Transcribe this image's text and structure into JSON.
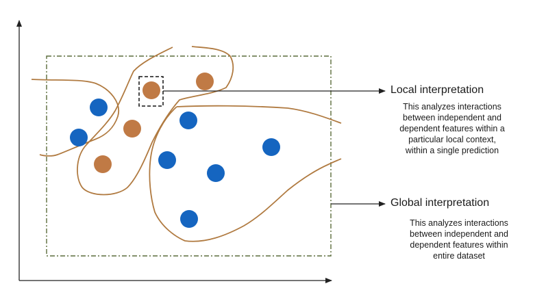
{
  "colors": {
    "blue_points": "#1565c0",
    "orange_points": "#c07a45",
    "boundary_curves": "#b07a40",
    "dataset_box": "#5a6b3a",
    "axes": "#222222",
    "selection_box": "#111111"
  },
  "annotations": {
    "local": {
      "title": "Local interpretation",
      "description_lines": [
        "This analyzes interactions",
        "between independent and",
        "dependent features within a",
        "particular local context,",
        "within a single prediction"
      ]
    },
    "global": {
      "title": "Global interpretation",
      "description_lines": [
        "This analyzes interactions",
        "between independent and",
        "dependent features within",
        "entire dataset"
      ]
    }
  }
}
